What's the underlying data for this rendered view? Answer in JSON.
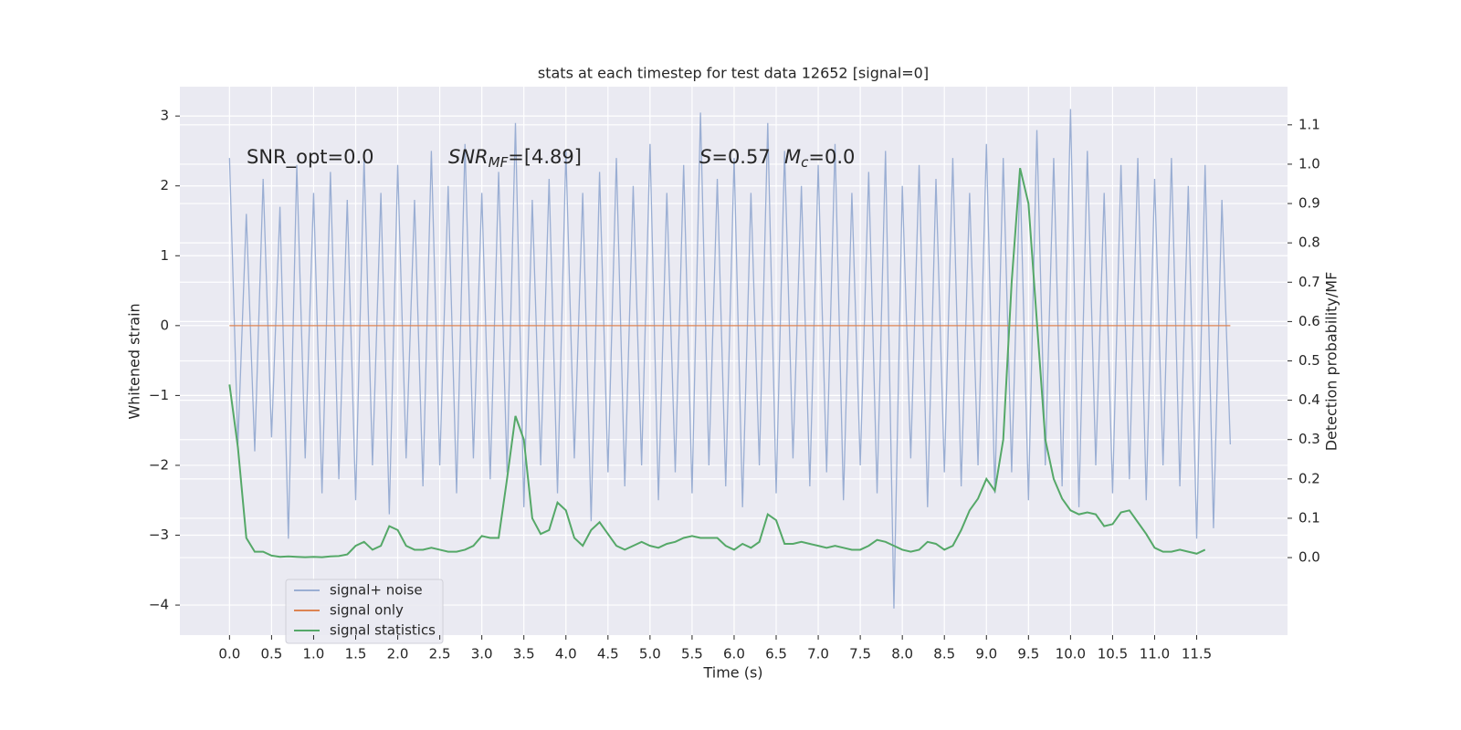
{
  "chart_data": {
    "type": "line",
    "title": "stats at each timestep for test data 12652 [signal=0]",
    "xlabel": "Time (s)",
    "ylabel": "Whitened strain",
    "y2label": "Detection probability/MF",
    "annotations": [
      "SNR_opt=0.0",
      "SNR_MF=[4.89]",
      "S=0.57",
      "M_c=0.0"
    ],
    "grid": true,
    "legend": "lower left",
    "xlim": [
      -0.59,
      12.58
    ],
    "ylim": [
      -4.43,
      3.42
    ],
    "y2lim": [
      -0.197,
      1.197
    ],
    "xticks": [
      {
        "value": 0,
        "label": "0.0"
      },
      0.5,
      {
        "value": 1,
        "label": "1.0"
      },
      1.5,
      {
        "value": 2,
        "label": "2.0"
      },
      2.5,
      {
        "value": 3,
        "label": "3.0"
      },
      3.5,
      {
        "value": 4,
        "label": "4.0"
      },
      4.5,
      {
        "value": 5,
        "label": "5.0"
      },
      5.5,
      {
        "value": 6,
        "label": "6.0"
      },
      6.5,
      {
        "value": 7,
        "label": "7.0"
      },
      7.5,
      {
        "value": 8,
        "label": "8.0"
      },
      8.5,
      {
        "value": 9,
        "label": "9.0"
      },
      9.5,
      {
        "value": 10,
        "label": "10.0"
      },
      10.5,
      {
        "value": 11,
        "label": "11.0"
      },
      11.5
    ],
    "yticks": [
      {
        "value": -4,
        "label": "−4"
      },
      {
        "value": -3,
        "label": "−3"
      },
      {
        "value": -2,
        "label": "−2"
      },
      {
        "value": -1,
        "label": "−1"
      },
      0,
      1,
      2,
      3
    ],
    "y2ticks": [
      {
        "value": 0,
        "label": "0.0"
      },
      0.1,
      0.2,
      0.3,
      0.4,
      0.5,
      0.6,
      0.7,
      0.8,
      0.9,
      {
        "value": 1,
        "label": "1.0"
      },
      1.1
    ],
    "x": [
      0.0,
      0.1,
      0.2,
      0.3,
      0.4,
      0.5,
      0.6,
      0.7,
      0.8,
      0.9,
      1.0,
      1.1,
      1.2,
      1.3,
      1.4,
      1.5,
      1.6,
      1.7,
      1.8,
      1.9,
      2.0,
      2.1,
      2.2,
      2.3,
      2.4,
      2.5,
      2.6,
      2.7,
      2.8,
      2.9,
      3.0,
      3.1,
      3.2,
      3.3,
      3.4,
      3.5,
      3.6,
      3.7,
      3.8,
      3.9,
      4.0,
      4.1,
      4.2,
      4.3,
      4.4,
      4.5,
      4.6,
      4.7,
      4.8,
      4.9,
      5.0,
      5.1,
      5.2,
      5.3,
      5.4,
      5.5,
      5.6,
      5.7,
      5.8,
      5.9,
      6.0,
      6.1,
      6.2,
      6.3,
      6.4,
      6.5,
      6.6,
      6.7,
      6.8,
      6.9,
      7.0,
      7.1,
      7.2,
      7.3,
      7.4,
      7.5,
      7.6,
      7.7,
      7.8,
      7.9,
      8.0,
      8.1,
      8.2,
      8.3,
      8.4,
      8.5,
      8.6,
      8.7,
      8.8,
      8.9,
      9.0,
      9.1,
      9.2,
      9.3,
      9.4,
      9.5,
      9.6,
      9.7,
      9.8,
      9.9,
      10.0,
      10.1,
      10.2,
      10.3,
      10.4,
      10.5,
      10.6,
      10.7,
      10.8,
      10.9,
      11.0,
      11.1,
      11.2,
      11.3,
      11.4,
      11.5,
      11.6,
      11.7,
      11.8,
      11.9
    ],
    "series": [
      {
        "name": "signal+ noise",
        "color": "#9aaed3",
        "axis": "y",
        "values": [
          2.4,
          -1.7,
          1.6,
          -1.8,
          2.1,
          -1.6,
          1.7,
          -3.05,
          2.3,
          -1.9,
          1.9,
          -2.4,
          2.2,
          -2.2,
          1.8,
          -2.5,
          2.4,
          -2.0,
          1.9,
          -2.7,
          2.3,
          -1.9,
          1.8,
          -2.3,
          2.5,
          -2.0,
          2.0,
          -2.4,
          2.6,
          -1.9,
          1.9,
          -2.2,
          2.2,
          -2.1,
          2.9,
          -2.6,
          1.8,
          -2.0,
          2.1,
          -2.4,
          2.5,
          -1.9,
          1.9,
          -2.8,
          2.2,
          -2.1,
          2.4,
          -2.3,
          2.0,
          -2.0,
          2.6,
          -2.5,
          1.9,
          -2.1,
          2.3,
          -2.4,
          3.05,
          -2.0,
          2.1,
          -2.3,
          2.4,
          -2.6,
          1.9,
          -2.0,
          2.9,
          -2.4,
          2.5,
          -1.9,
          2.0,
          -2.3,
          2.3,
          -2.1,
          2.6,
          -2.5,
          1.9,
          -2.0,
          2.2,
          -2.4,
          2.5,
          -4.05,
          2.0,
          -1.9,
          2.3,
          -2.6,
          2.1,
          -2.1,
          2.4,
          -2.3,
          1.9,
          -2.0,
          2.6,
          -2.4,
          2.4,
          -2.1,
          2.2,
          -2.5,
          2.8,
          -2.0,
          2.4,
          -2.3,
          3.1,
          -2.6,
          2.5,
          -2.0,
          1.9,
          -2.4,
          2.3,
          -2.2,
          2.4,
          -2.5,
          2.1,
          -2.0,
          2.4,
          -2.3,
          2.0,
          -3.05,
          2.3,
          -2.9,
          1.8,
          -1.7
        ]
      },
      {
        "name": "signal only",
        "color": "#dd8452",
        "axis": "y",
        "values": [
          0,
          0,
          0,
          0,
          0,
          0,
          0,
          0,
          0,
          0,
          0,
          0,
          0,
          0,
          0,
          0,
          0,
          0,
          0,
          0,
          0,
          0,
          0,
          0,
          0,
          0,
          0,
          0,
          0,
          0,
          0,
          0,
          0,
          0,
          0,
          0,
          0,
          0,
          0,
          0,
          0,
          0,
          0,
          0,
          0,
          0,
          0,
          0,
          0,
          0,
          0,
          0,
          0,
          0,
          0,
          0,
          0,
          0,
          0,
          0,
          0,
          0,
          0,
          0,
          0,
          0,
          0,
          0,
          0,
          0,
          0,
          0,
          0,
          0,
          0,
          0,
          0,
          0,
          0,
          0,
          0,
          0,
          0,
          0,
          0,
          0,
          0,
          0,
          0,
          0,
          0,
          0,
          0,
          0,
          0,
          0,
          0,
          0,
          0,
          0,
          0,
          0,
          0,
          0,
          0,
          0,
          0,
          0,
          0,
          0,
          0,
          0,
          0,
          0,
          0,
          0,
          0,
          0,
          0,
          0
        ]
      },
      {
        "name": "signal statistics",
        "color": "#55a868",
        "axis": "y2",
        "values": [
          0.44,
          0.28,
          0.05,
          0.015,
          0.015,
          0.005,
          0.002,
          0.003,
          0.002,
          0.001,
          0.002,
          0.001,
          0.003,
          0.004,
          0.008,
          0.03,
          0.04,
          0.02,
          0.03,
          0.08,
          0.07,
          0.03,
          0.02,
          0.02,
          0.025,
          0.02,
          0.015,
          0.015,
          0.02,
          0.03,
          0.055,
          0.05,
          0.05,
          0.2,
          0.36,
          0.3,
          0.1,
          0.06,
          0.07,
          0.14,
          0.12,
          0.05,
          0.03,
          0.07,
          0.09,
          0.06,
          0.03,
          0.02,
          0.03,
          0.04,
          0.03,
          0.025,
          0.035,
          0.04,
          0.05,
          0.055,
          0.05,
          0.05,
          0.05,
          0.03,
          0.02,
          0.035,
          0.025,
          0.04,
          0.11,
          0.095,
          0.035,
          0.035,
          0.04,
          0.035,
          0.03,
          0.025,
          0.03,
          0.025,
          0.02,
          0.02,
          0.03,
          0.045,
          0.04,
          0.03,
          0.02,
          0.015,
          0.02,
          0.04,
          0.035,
          0.02,
          0.03,
          0.07,
          0.12,
          0.15,
          0.2,
          0.17,
          0.3,
          0.7,
          0.99,
          0.9,
          0.6,
          0.3,
          0.2,
          0.15,
          0.12,
          0.11,
          0.115,
          0.11,
          0.08,
          0.085,
          0.115,
          0.12,
          0.09,
          0.06,
          0.025,
          0.015,
          0.015,
          0.02,
          0.015,
          0.01,
          0.02,
          null,
          null,
          null
        ]
      }
    ]
  }
}
